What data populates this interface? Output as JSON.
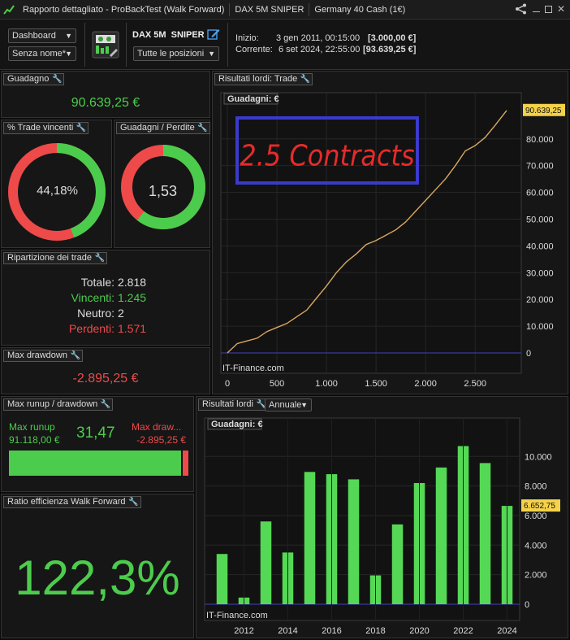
{
  "titlebar": {
    "title": "Rapporto dettagliato - ProBackTest (Walk Forward)",
    "instrument": "DAX 5M  SNIPER",
    "market": "Germany 40 Cash (1€)"
  },
  "toolbar": {
    "view_select": "Dashboard",
    "name_select": "Senza nome*",
    "strategy_name": "DAX 5M  SNIPER",
    "positions_select": "Tutte le posizioni",
    "start_label": "Inizio:",
    "start_date": "3 gen 2011, 00:15:00",
    "start_value": "[3.000,00 €]",
    "current_label": "Corrente:",
    "current_date": "6 set 2024, 22:55:00",
    "current_value": "[93.639,25 €]"
  },
  "gain": {
    "title": "Guadagno",
    "value": "90.639,25 €"
  },
  "win_pct": {
    "title": "% Trade vincenti",
    "value": "44,18%",
    "fraction": 0.4418
  },
  "gain_loss": {
    "title": "Guadagni / Perdite",
    "value": "1,53",
    "fraction": 0.605
  },
  "breakdown": {
    "title": "Ripartizione dei trade",
    "total_label": "Totale:",
    "total": "2.818",
    "win_label": "Vincenti:",
    "win": "1.245",
    "neutral_label": "Neutro:",
    "neutral": "2",
    "loss_label": "Perdenti:",
    "loss": "1.571"
  },
  "max_dd": {
    "title": "Max drawdown",
    "value": "-2.895,25 €"
  },
  "runup": {
    "title": "Max runup / drawdown",
    "runup_label": "Max runup",
    "runup_value": "91.118,00 €",
    "ratio": "31,47",
    "dd_label": "Max draw...",
    "dd_value": "-2.895,25 €",
    "runup_fraction": 0.97
  },
  "wf": {
    "title": "Ratio efficienza Walk Forward",
    "value": "122,3%"
  },
  "colors": {
    "green": "#4ccc4c",
    "red": "#ee4a4a",
    "bar": "#55d855"
  },
  "chart_data": [
    {
      "type": "line",
      "panel_title": "Risultati lordi: Trade",
      "label": "Guadagni: €",
      "annotation": "2.5 Contracts",
      "watermark": "IT-Finance.com",
      "last_value_label": "90.639,25",
      "xlim": [
        0,
        2900
      ],
      "ylim": [
        -3000,
        93000
      ],
      "xticks": [
        "0",
        "500",
        "1.000",
        "1.500",
        "2.000",
        "2.500"
      ],
      "yticks": [
        "0",
        "10.000",
        "20.000",
        "30.000",
        "40.000",
        "50.000",
        "60.000",
        "70.000",
        "80.000"
      ],
      "x": [
        0,
        100,
        200,
        300,
        400,
        500,
        600,
        700,
        800,
        900,
        1000,
        1100,
        1200,
        1300,
        1400,
        1500,
        1600,
        1700,
        1800,
        1900,
        2000,
        2100,
        2200,
        2300,
        2400,
        2500,
        2600,
        2700,
        2818
      ],
      "y": [
        0,
        3500,
        4500,
        5500,
        8000,
        9500,
        11000,
        13500,
        16000,
        20500,
        25000,
        30000,
        34000,
        37000,
        40500,
        42000,
        44000,
        46000,
        49000,
        53000,
        57000,
        61000,
        65000,
        70000,
        75500,
        77500,
        80500,
        85000,
        90639
      ]
    },
    {
      "type": "bar",
      "panel_title": "Risultati lordi",
      "period_select": "Annuale",
      "label": "Guadagni: €",
      "watermark": "IT-Finance.com",
      "last_value_label": "6.652,75",
      "categories": [
        "2011",
        "2012",
        "2013",
        "2014",
        "2015",
        "2016",
        "2017",
        "2018",
        "2019",
        "2020",
        "2021",
        "2022",
        "2023",
        "2024"
      ],
      "values": [
        3400,
        450,
        5600,
        3500,
        8950,
        8800,
        8450,
        1950,
        5400,
        8200,
        9250,
        10700,
        9550,
        6652.75
      ],
      "xticks": [
        "2012",
        "2014",
        "2016",
        "2018",
        "2020",
        "2022",
        "2024"
      ],
      "yticks": [
        "0",
        "2.000",
        "4.000",
        "6.000",
        "8.000",
        "10.000"
      ],
      "ylim": [
        0,
        11500
      ]
    }
  ]
}
